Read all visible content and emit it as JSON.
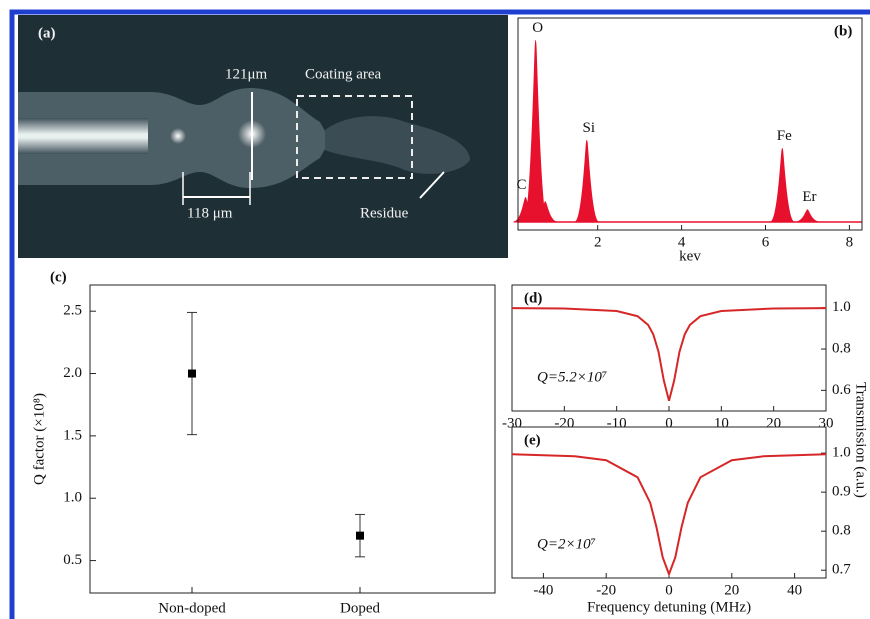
{
  "photo": {
    "label": "(a)",
    "annotations": [
      "121μm",
      "Coating area",
      "118 μm",
      "Residue"
    ]
  },
  "chart_data": [
    {
      "type": "spectrum",
      "panel_label": "(b)",
      "xlabel": "kev",
      "xlim": [
        0.1,
        8.3
      ],
      "xticks": [
        2,
        4,
        6,
        8
      ],
      "color": "#e8112d",
      "peaks": {
        "labels": [
          "C",
          "O",
          null,
          "Si",
          "Fe",
          "Er"
        ],
        "x": [
          0.28,
          0.52,
          0.75,
          1.74,
          6.4,
          7.0
        ],
        "values": [
          12,
          89,
          10,
          40,
          36,
          6
        ]
      }
    },
    {
      "type": "errorbar",
      "panel_label": "(c)",
      "ylabel": "Q factor (×10⁸)",
      "categories": [
        "Non-doped",
        "Doped"
      ],
      "values": [
        2.0,
        0.7
      ],
      "errors": [
        0.49,
        0.17
      ],
      "color": "#000000",
      "ylim": [
        0.24,
        2.71
      ],
      "yticks": [
        0.5,
        {
          "value": 1,
          "label": "1.0"
        },
        1.5,
        {
          "value": 2,
          "label": "2.0"
        },
        2.5
      ]
    },
    {
      "type": "line",
      "panel_label": "(d)",
      "annotation": "Q=5.2×10⁷",
      "color": "#d62728",
      "x": [
        -30,
        -20,
        -10,
        -6,
        -4,
        -3,
        -2,
        -1,
        0,
        1,
        2,
        3,
        4,
        6,
        10,
        20,
        30
      ],
      "values": [
        0.998,
        0.996,
        0.984,
        0.959,
        0.917,
        0.871,
        0.787,
        0.648,
        0.55,
        0.648,
        0.787,
        0.871,
        0.917,
        0.959,
        0.984,
        0.996,
        0.998
      ],
      "xlim": [
        -30,
        30
      ],
      "xticks": [
        -30,
        -20,
        -10,
        0,
        10,
        20,
        30
      ],
      "ylim": [
        0.5,
        1.11
      ],
      "yticks": [
        0.6,
        0.8,
        {
          "value": 1,
          "label": "1.0"
        }
      ]
    },
    {
      "type": "line",
      "panel_label": "(e)",
      "annotation": "Q=2×10⁷",
      "color": "#d62728",
      "xlabel": "Frequency detuning (MHz)",
      "ylabel": "Transmission (a.u.)",
      "x": [
        -50,
        -30,
        -20,
        -10,
        -6,
        -4,
        -2,
        0,
        2,
        4,
        6,
        10,
        20,
        30,
        50
      ],
      "values": [
        0.997,
        0.992,
        0.982,
        0.938,
        0.873,
        0.811,
        0.733,
        0.69,
        0.733,
        0.811,
        0.873,
        0.938,
        0.982,
        0.992,
        0.997
      ],
      "xlim": [
        -50,
        50
      ],
      "xticks": [
        -40,
        -20,
        0,
        20,
        40
      ],
      "ylim": [
        0.68,
        1.067
      ],
      "yticks": [
        0.7,
        0.8,
        0.9,
        {
          "value": 1,
          "label": "1.0"
        }
      ]
    }
  ]
}
